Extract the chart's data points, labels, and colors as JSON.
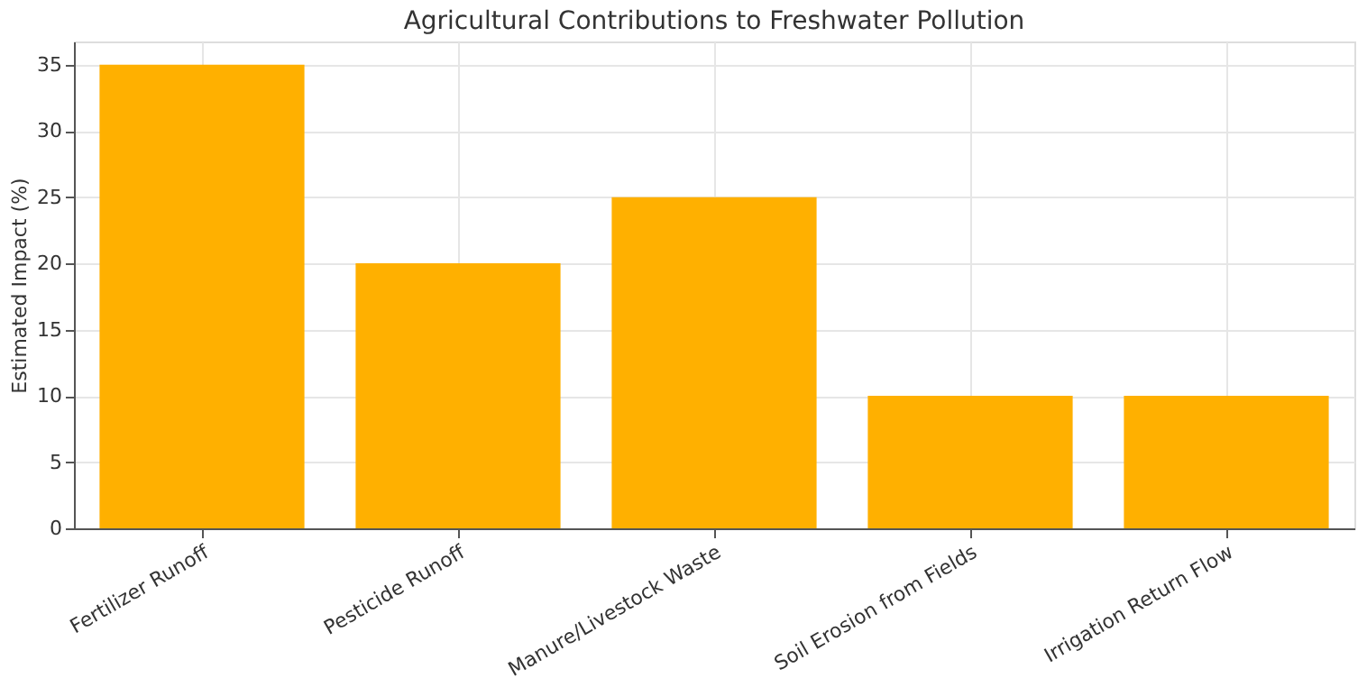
{
  "chart_data": {
    "type": "bar",
    "title": "Agricultural Contributions to Freshwater Pollution",
    "ylabel": "Estimated Impact (%)",
    "categories": [
      "Fertilizer Runoff",
      "Pesticide Runoff",
      "Manure/Livestock Waste",
      "Soil Erosion from Fields",
      "Irrigation Return Flow"
    ],
    "values": [
      35,
      20,
      25,
      10,
      10
    ],
    "color": "#ffb000",
    "ylim": [
      0,
      36.75
    ],
    "yticks": [
      0,
      5,
      10,
      15,
      20,
      25,
      30,
      35
    ],
    "grid": true
  }
}
